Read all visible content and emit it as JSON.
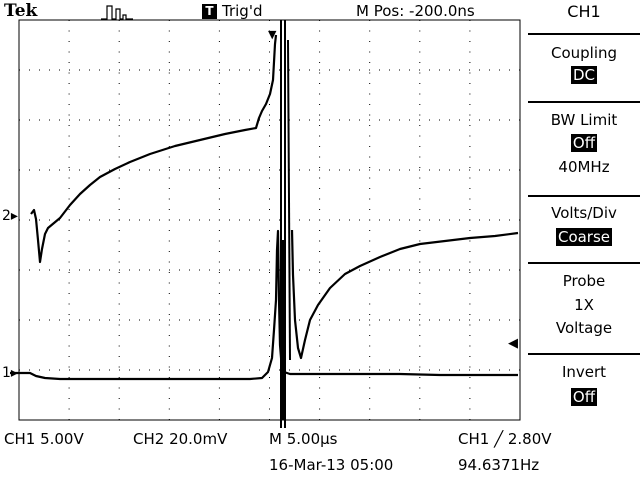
{
  "header": {
    "brand": "Tek",
    "trigger_status_icon": "T",
    "trigger_status": "Trig'd",
    "position": "M Pos: -200.0ns"
  },
  "side_menu": {
    "title": "CH1",
    "coupling": {
      "label": "Coupling",
      "value": "DC"
    },
    "bw_limit": {
      "label": "BW Limit",
      "value": "Off",
      "note": "40MHz"
    },
    "volts_div": {
      "label": "Volts/Div",
      "value": "Coarse"
    },
    "probe": {
      "label": "Probe",
      "line1": "1X",
      "line2": "Voltage"
    },
    "invert": {
      "label": "Invert",
      "value": "Off"
    }
  },
  "markers": {
    "ch1": "1",
    "ch2": "2"
  },
  "status": {
    "ch1_scale": "CH1  5.00V",
    "ch2_scale": "CH2  20.0mV",
    "timebase": "M 5.00µs",
    "trigger": "CH1 ╱ 2.80V",
    "date": "16-Mar-13 05:00",
    "frequency": "94.6371Hz"
  },
  "colors": {
    "background": "#ffffff",
    "trace": "#000000",
    "grid": "#000000"
  }
}
